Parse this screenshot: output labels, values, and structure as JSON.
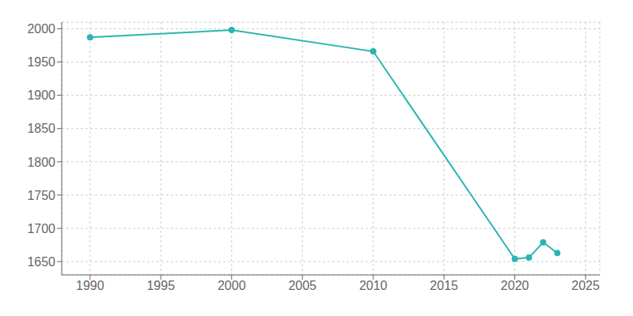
{
  "chart_data": {
    "type": "line",
    "x": [
      1990,
      2000,
      2010,
      2020,
      2021,
      2022,
      2023
    ],
    "values": [
      1987,
      1998,
      1966,
      1654,
      1656,
      1679,
      1663
    ],
    "color": "#2ab5b0",
    "marker": "circle",
    "xlim": [
      1988,
      2026
    ],
    "ylim": [
      1630,
      2010
    ],
    "xticks": [
      1990,
      1995,
      2000,
      2005,
      2010,
      2015,
      2020,
      2025
    ],
    "yticks": [
      1650,
      1700,
      1750,
      1800,
      1850,
      1900,
      1950,
      2000
    ],
    "grid": true
  }
}
